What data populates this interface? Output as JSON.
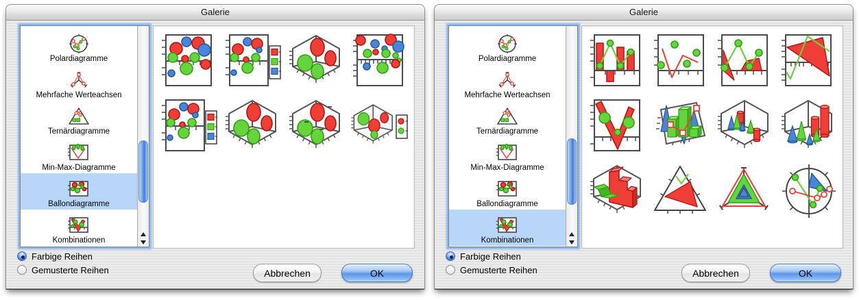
{
  "palette": {
    "red": "#ef3e35",
    "red_stroke": "#b31212",
    "red_light": "#fa9b93",
    "red_top": "#f87d72",
    "green": "#66d43c",
    "green_stroke": "#2f9e12",
    "green_light": "#a5ec85",
    "green_dark": "#44b522",
    "blue": "#4a86d8",
    "blue_stroke": "#25589e",
    "selection": "#b8d6f8",
    "frame": "#4a4a4a"
  },
  "windows": [
    {
      "title": "Galerie",
      "sidebar": {
        "items": [
          {
            "label": "Polardiagramme",
            "icon": "polar-chart-icon",
            "selected": false
          },
          {
            "label": "Mehrfache Werteachsen",
            "icon": "multi-axes-icon",
            "selected": false
          },
          {
            "label": "Ternärdiagramme",
            "icon": "ternary-chart-icon",
            "selected": false
          },
          {
            "label": "Min-Max-Diagramme",
            "icon": "minmax-chart-icon",
            "selected": false
          },
          {
            "label": "Ballondiagramme",
            "icon": "balloon-chart-icon",
            "selected": true
          },
          {
            "label": "Kombinationen",
            "icon": "combination-chart-icon",
            "selected": false
          }
        ]
      },
      "gallery": {
        "columns": 4,
        "thumbnails": [
          {
            "kind": "bubble-2d"
          },
          {
            "kind": "bubble-2d-legend"
          },
          {
            "kind": "bubble-3d"
          },
          {
            "kind": "bubble-2d-dense"
          },
          {
            "kind": "bubble-2d-legend"
          },
          {
            "kind": "bubble-3d"
          },
          {
            "kind": "bubble-3d-labels"
          },
          {
            "kind": "bubble-3d-legend"
          }
        ]
      },
      "options": {
        "colored_label": "Farbige Reihen",
        "patterned_label": "Gemusterte Reihen",
        "selected": "colored"
      },
      "actions": {
        "cancel": "Abbrechen",
        "ok": "OK"
      },
      "scrollbar": {
        "thumb_top_pct": 56,
        "thumb_height_pct": 30
      }
    },
    {
      "title": "Galerie",
      "sidebar": {
        "items": [
          {
            "label": "Polardiagramme",
            "icon": "polar-chart-icon",
            "selected": false
          },
          {
            "label": "Mehrfache Werteachsen",
            "icon": "multi-axes-icon",
            "selected": false
          },
          {
            "label": "Ternärdiagramme",
            "icon": "ternary-chart-icon",
            "selected": false
          },
          {
            "label": "Min-Max-Diagramme",
            "icon": "minmax-chart-icon",
            "selected": false
          },
          {
            "label": "Ballondiagramme",
            "icon": "balloon-chart-icon",
            "selected": false
          },
          {
            "label": "Kombinationen",
            "icon": "combination-chart-icon",
            "selected": true
          }
        ]
      },
      "gallery": {
        "columns": 4,
        "thumbnails": [
          {
            "kind": "combo-bar-line"
          },
          {
            "kind": "combo-line-scatter"
          },
          {
            "kind": "combo-area-line"
          },
          {
            "kind": "combo-area-big"
          },
          {
            "kind": "combo-varea-bubbles"
          },
          {
            "kind": "combo-3d-bars"
          },
          {
            "kind": "combo-3d-cones-small"
          },
          {
            "kind": "combo-3d-cones-large"
          },
          {
            "kind": "combo-3d-steps"
          },
          {
            "kind": "combo-ternary-area"
          },
          {
            "kind": "combo-radar"
          },
          {
            "kind": "combo-polar"
          }
        ]
      },
      "options": {
        "colored_label": "Farbige Reihen",
        "patterned_label": "Gemusterte Reihen",
        "selected": "colored"
      },
      "actions": {
        "cancel": "Abbrechen",
        "ok": "OK"
      },
      "scrollbar": {
        "thumb_top_pct": 55,
        "thumb_height_pct": 32
      }
    }
  ]
}
